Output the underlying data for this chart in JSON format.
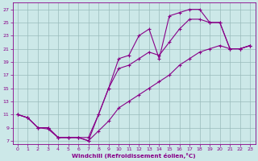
{
  "xlabel": "Windchill (Refroidissement éolien,°C)",
  "bg_color": "#cce8e8",
  "line_color": "#880088",
  "grid_color": "#99bbbb",
  "xlim": [
    -0.5,
    23.5
  ],
  "ylim": [
    6.5,
    28
  ],
  "xticks": [
    0,
    1,
    2,
    3,
    4,
    5,
    6,
    7,
    8,
    9,
    10,
    11,
    12,
    13,
    14,
    15,
    16,
    17,
    18,
    19,
    20,
    21,
    22,
    23
  ],
  "yticks": [
    7,
    9,
    11,
    13,
    15,
    17,
    19,
    21,
    23,
    25,
    27
  ],
  "line1_x": [
    0,
    1,
    2,
    3,
    4,
    5,
    6,
    7,
    8,
    9,
    10,
    11,
    12,
    13,
    14,
    15,
    16,
    17,
    18,
    19,
    20,
    21,
    22,
    23
  ],
  "line1_y": [
    11,
    10.5,
    9,
    9,
    7.5,
    7.5,
    7.5,
    7.5,
    11,
    15,
    19.5,
    20,
    23,
    24,
    19.5,
    26,
    26.5,
    27,
    27,
    25,
    25,
    21,
    21,
    21.5
  ],
  "line2_x": [
    0,
    1,
    2,
    3,
    4,
    5,
    6,
    7,
    8,
    9,
    10,
    11,
    12,
    13,
    14,
    15,
    16,
    17,
    18,
    19,
    20,
    21,
    22,
    23
  ],
  "line2_y": [
    11,
    10.5,
    9,
    9,
    7.5,
    7.5,
    7.5,
    7.0,
    11,
    15,
    18,
    18.5,
    19.5,
    20.5,
    20,
    22,
    24,
    25.5,
    25.5,
    25,
    25,
    21,
    21,
    21.5
  ],
  "line3_x": [
    0,
    1,
    2,
    3,
    4,
    5,
    6,
    7,
    8,
    9,
    10,
    11,
    12,
    13,
    14,
    15,
    16,
    17,
    18,
    19,
    20,
    21,
    22,
    23
  ],
  "line3_y": [
    11,
    10.5,
    9,
    8.8,
    7.5,
    7.5,
    7.5,
    7.0,
    8.5,
    10,
    12,
    13,
    14,
    15,
    16,
    17,
    18.5,
    19.5,
    20.5,
    21,
    21.5,
    21,
    21,
    21.5
  ]
}
